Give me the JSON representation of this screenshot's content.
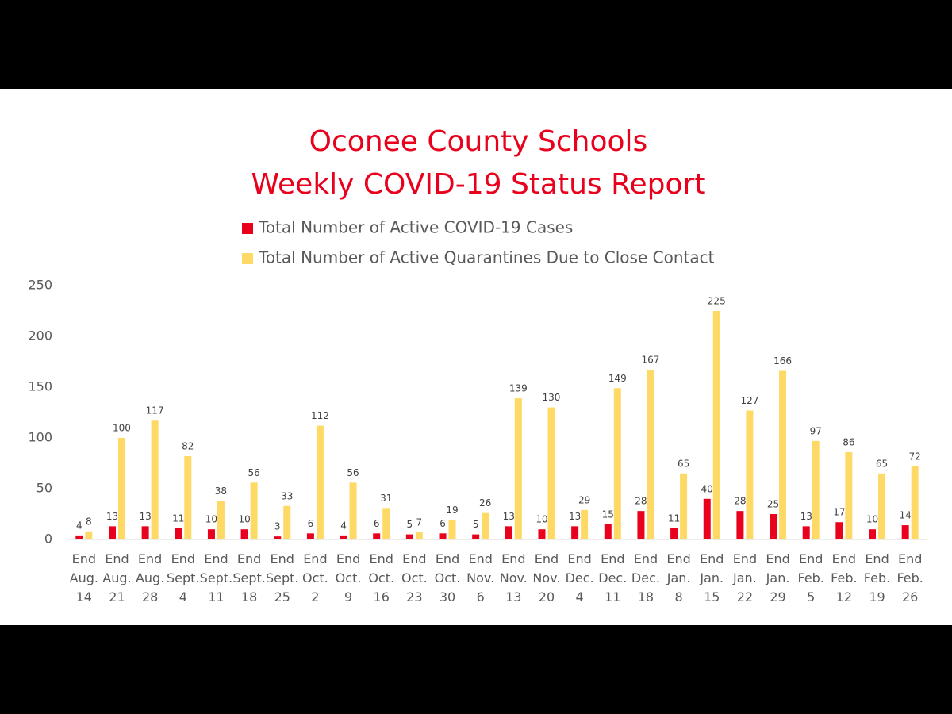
{
  "chart_data": {
    "type": "bar",
    "title": "Oconee County Schools",
    "subtitle": "Weekly COVID-19 Status Report",
    "categories": [
      "End Aug. 14",
      "End Aug. 21",
      "End Aug. 28",
      "End Sept. 4",
      "End Sept. 11",
      "End Sept. 18",
      "End Sept. 25",
      "End Oct. 2",
      "End Oct. 9",
      "End Oct. 16",
      "End Oct. 23",
      "End Oct. 30",
      "End Nov. 6",
      "End Nov. 13",
      "End Nov. 20",
      "End Dec. 4",
      "End Dec. 11",
      "End Dec. 18",
      "End Jan. 8",
      "End Jan. 15",
      "End Jan. 22",
      "End Jan. 29",
      "End Feb. 5",
      "End Feb. 12",
      "End Feb. 19",
      "End Feb. 26"
    ],
    "series": [
      {
        "name": "Total Number of Active COVID-19 Cases",
        "color": "#e8001c",
        "values": [
          4,
          13,
          13,
          11,
          10,
          10,
          3,
          6,
          4,
          6,
          5,
          6,
          5,
          13,
          10,
          13,
          15,
          28,
          11,
          40,
          28,
          25,
          13,
          17,
          10,
          14
        ]
      },
      {
        "name": "Total Number of Active Quarantines Due to Close Contact",
        "color": "#ffd966",
        "values": [
          8,
          100,
          117,
          82,
          38,
          56,
          33,
          112,
          56,
          31,
          7,
          19,
          26,
          139,
          130,
          29,
          149,
          167,
          65,
          225,
          127,
          166,
          97,
          86,
          65,
          72
        ]
      }
    ],
    "ylim": [
      0,
      250
    ],
    "yticks": [
      0,
      50,
      100,
      150,
      200,
      250
    ],
    "grid": false
  }
}
